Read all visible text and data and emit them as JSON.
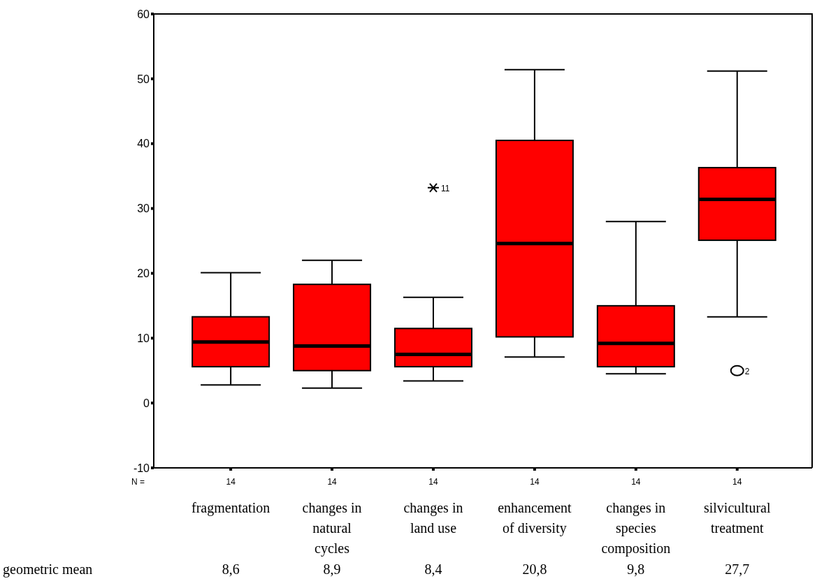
{
  "chart_data": {
    "type": "box",
    "categories": [
      "fragmentation",
      "changes in natural cycles",
      "changes in land use",
      "enhancement of diversity",
      "changes in species composition",
      "silvicultural treatment"
    ],
    "ylim": [
      -10,
      60
    ],
    "yticks": [
      -10,
      0,
      10,
      20,
      30,
      40,
      50,
      60
    ],
    "series": [
      {
        "color": "#ff0000",
        "boxes": [
          {
            "low": 2.8,
            "q1": 5.6,
            "median": 9.4,
            "q3": 13.3,
            "high": 20.1
          },
          {
            "low": 2.3,
            "q1": 5.0,
            "median": 8.8,
            "q3": 18.3,
            "high": 22.0
          },
          {
            "low": 3.4,
            "q1": 5.6,
            "median": 7.5,
            "q3": 11.5,
            "high": 16.3
          },
          {
            "low": 7.1,
            "q1": 10.2,
            "median": 24.6,
            "q3": 40.5,
            "high": 51.4
          },
          {
            "low": 4.5,
            "q1": 5.6,
            "median": 9.2,
            "q3": 15.0,
            "high": 28.0
          },
          {
            "low": 13.3,
            "q1": 25.1,
            "median": 31.4,
            "q3": 36.3,
            "high": 51.2
          }
        ]
      },
      {
        "type": "scatter",
        "x": [
          "changes in land use"
        ],
        "values": [
          33.2
        ],
        "marker": "cross",
        "color": "#000000"
      },
      {
        "type": "scatter",
        "x": [
          "silvicultural treatment"
        ],
        "values": [
          5.0
        ],
        "marker": "circle",
        "color": "#000000"
      }
    ],
    "annotations": [
      {
        "text": "11",
        "x": "changes in land use",
        "y": 33.2
      },
      {
        "text": "2",
        "x": "silvicultural treatment",
        "y": 5.0
      },
      "N =",
      "14",
      "14",
      "14",
      "14",
      "14",
      "14",
      "geometric mean",
      "8,6",
      "8,9",
      "8,4",
      "20,8",
      "9,8",
      "27,7"
    ]
  }
}
